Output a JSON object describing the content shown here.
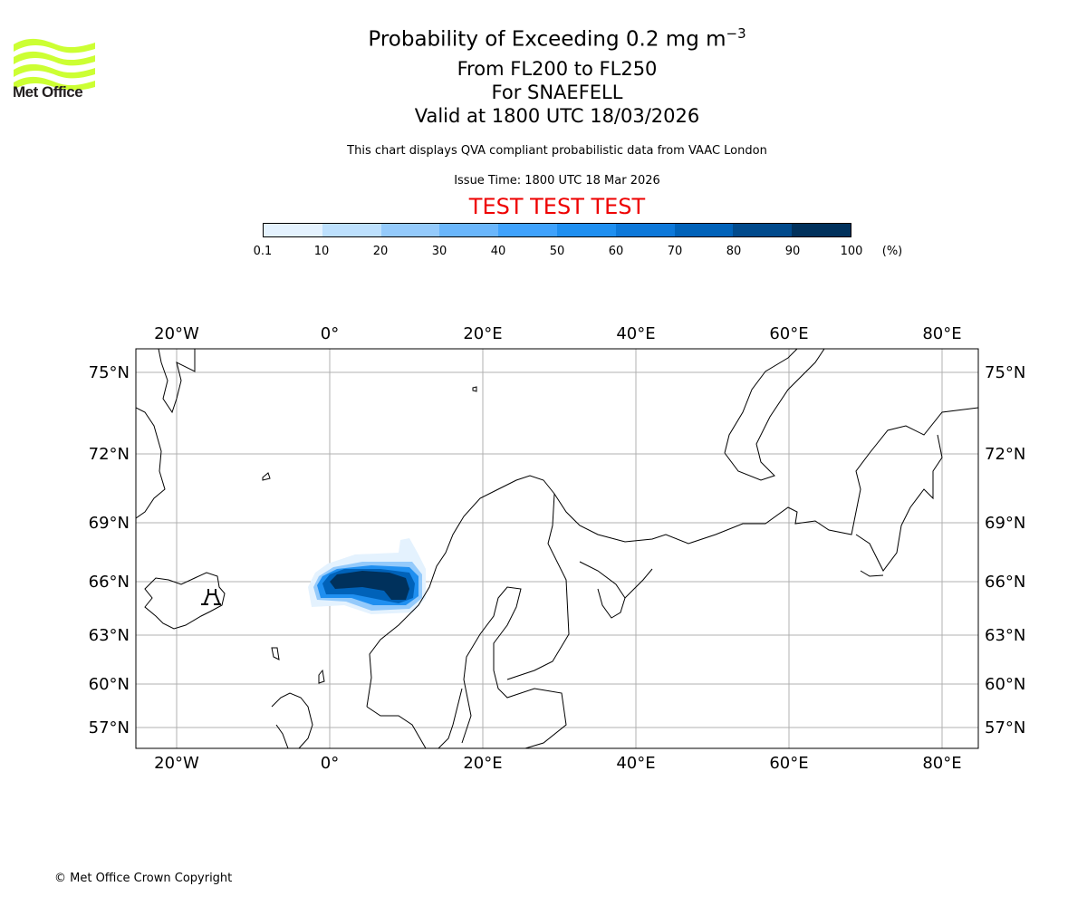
{
  "logo": {
    "text": "Met Office",
    "color": "#ccff33"
  },
  "title": {
    "line1": "Probability of Exceeding 0.2 mg m",
    "line1_sup": "−3",
    "line2": "From FL200 to FL250",
    "line3": "For SNAEFELL",
    "line4": "Valid at 1800 UTC 18/03/2026"
  },
  "disclaimer": "This chart displays QVA compliant probabilistic data from VAAC London",
  "issue_time": "Issue Time: 1800 UTC 18 Mar 2026",
  "test_banner": "TEST TEST TEST",
  "colorbar": {
    "ticks": [
      "0.1",
      "10",
      "20",
      "30",
      "40",
      "50",
      "60",
      "70",
      "80",
      "90",
      "100"
    ],
    "unit": "(%)",
    "colors": [
      "#e4f2fe",
      "#bde0fd",
      "#94cafb",
      "#6ab6fb",
      "#3fa2fc",
      "#1f8ff0",
      "#0d78d9",
      "#0062b9",
      "#004a8c",
      "#00315c"
    ]
  },
  "map": {
    "lon_labels": [
      "20°W",
      "0°",
      "20°E",
      "40°E",
      "60°E",
      "80°E"
    ],
    "lat_labels": [
      "75°N",
      "72°N",
      "69°N",
      "66°N",
      "63°N",
      "60°N",
      "57°N"
    ],
    "volcano": "Snaefell"
  },
  "copyright": "© Met Office Crown Copyright"
}
